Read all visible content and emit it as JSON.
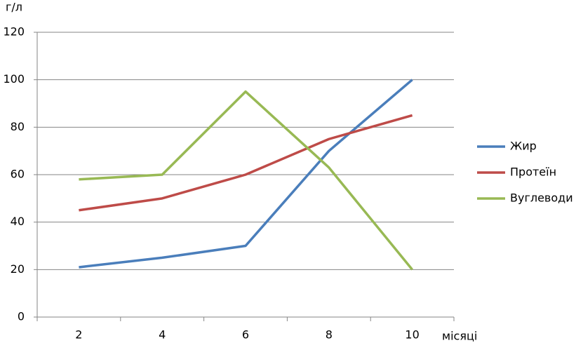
{
  "chart_data": {
    "type": "line",
    "y_axis_label": "г/л",
    "x_axis_label": "місяці",
    "categories": [
      "2",
      "4",
      "6",
      "8",
      "10"
    ],
    "series": [
      {
        "name": "Жир",
        "color": "#4a7ebb",
        "values": [
          21,
          25,
          30,
          70,
          100
        ]
      },
      {
        "name": "Протеїн",
        "color": "#be4b48",
        "values": [
          45,
          50,
          60,
          75,
          85
        ]
      },
      {
        "name": "Вуглеводи",
        "color": "#98b954",
        "values": [
          58,
          60,
          95,
          63,
          20
        ]
      }
    ],
    "ylim": [
      0,
      120
    ],
    "yticks": [
      0,
      20,
      40,
      60,
      80,
      100,
      120
    ],
    "grid": true,
    "legend": "right"
  }
}
